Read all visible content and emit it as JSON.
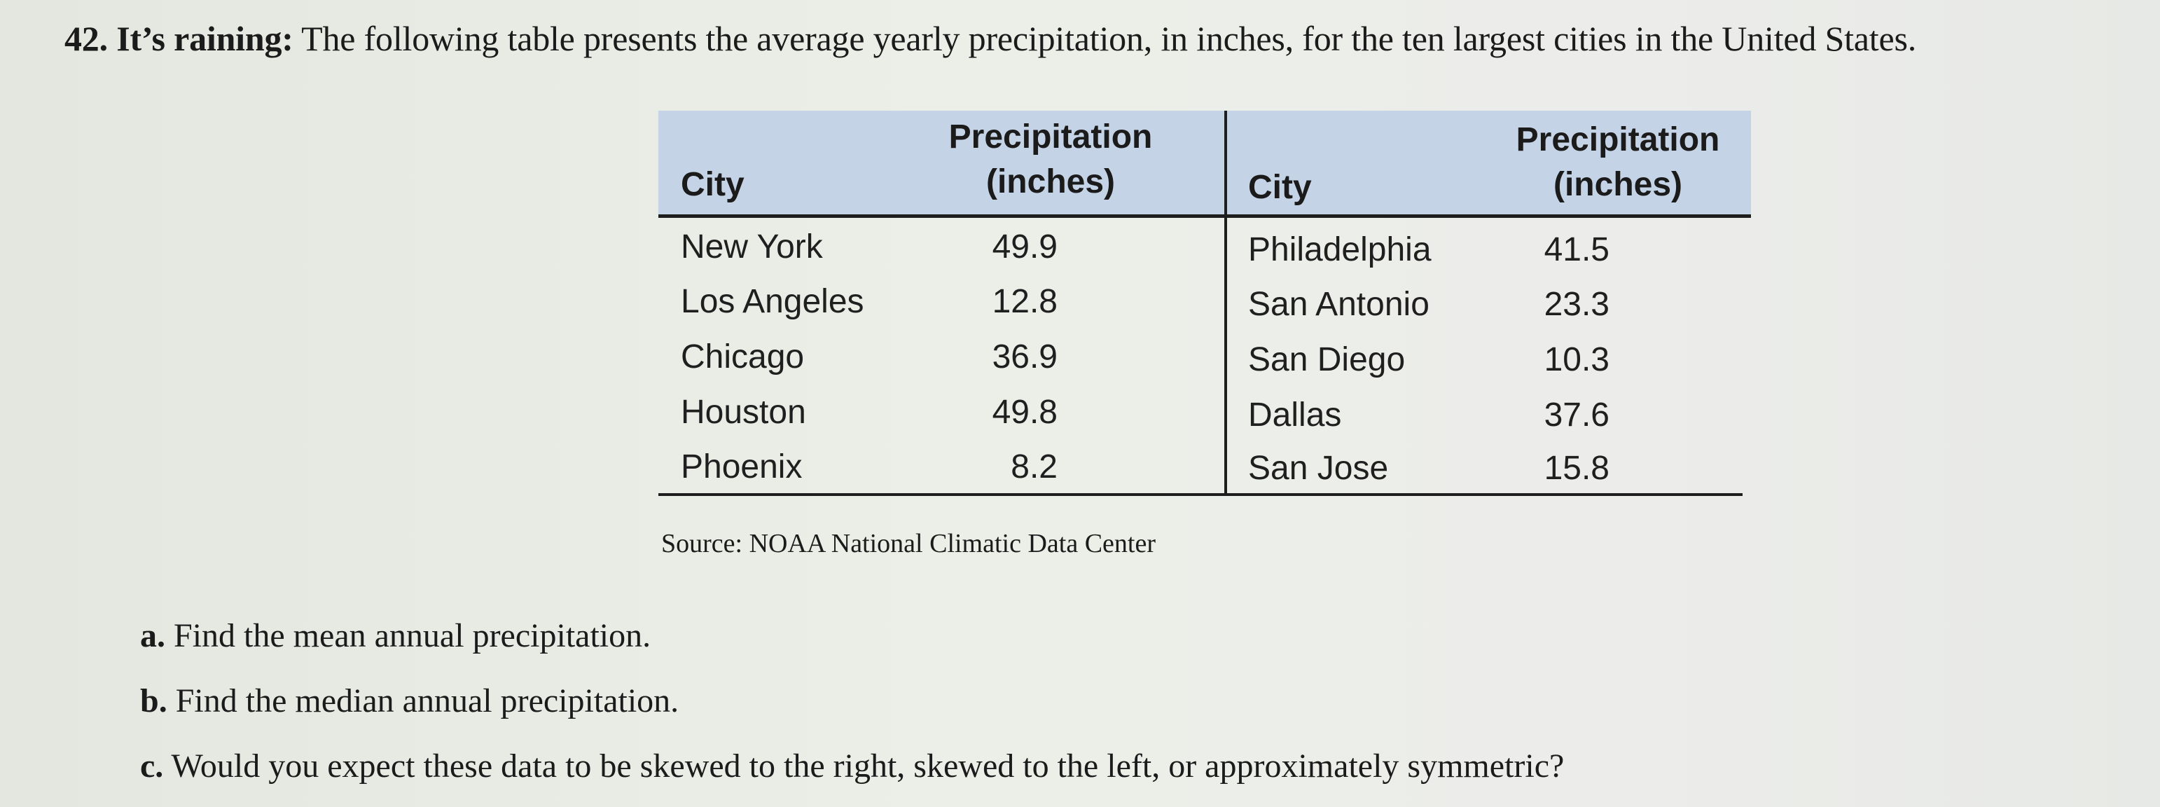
{
  "problem": {
    "number": "42.",
    "lead": "It’s raining:",
    "text": "The following table presents the average yearly precipitation, in inches, for the ten largest cities in the United States."
  },
  "table": {
    "headers": {
      "city": "City",
      "precip_line1": "Precipitation",
      "precip_line2": "(inches)"
    },
    "left_rows": [
      {
        "city": "New York",
        "value": "49.9"
      },
      {
        "city": "Los Angeles",
        "value": "12.8"
      },
      {
        "city": "Chicago",
        "value": "36.9"
      },
      {
        "city": "Houston",
        "value": "49.8"
      },
      {
        "city": "Phoenix",
        "value": "8.2"
      }
    ],
    "right_rows": [
      {
        "city": "Philadelphia",
        "value": "41.5"
      },
      {
        "city": "San Antonio",
        "value": "23.3"
      },
      {
        "city": "San Diego",
        "value": "10.3"
      },
      {
        "city": "Dallas",
        "value": "37.6"
      },
      {
        "city": "San Jose",
        "value": "15.8"
      }
    ],
    "header_bg": "#c5d3e6",
    "source": "Source: NOAA National Climatic Data Center"
  },
  "questions": [
    {
      "letter": "a.",
      "text": "Find the mean annual precipitation."
    },
    {
      "letter": "b.",
      "text": "Find the median annual precipitation."
    },
    {
      "letter": "c.",
      "text": "Would you expect these data to be skewed to the right, skewed to the left, or approximately symmetric?"
    }
  ]
}
